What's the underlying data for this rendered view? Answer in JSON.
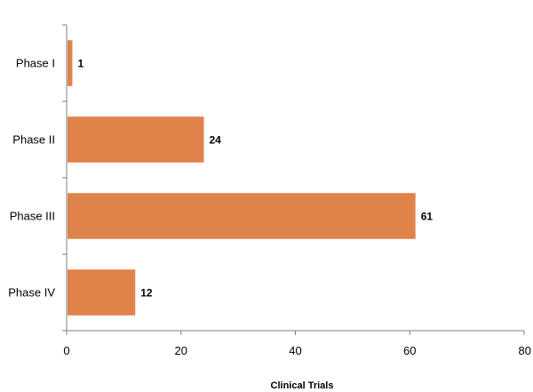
{
  "chart_data": {
    "type": "bar",
    "orientation": "horizontal",
    "categories": [
      "Phase I",
      "Phase II",
      "Phase III",
      "Phase IV"
    ],
    "values": [
      1,
      24,
      61,
      12
    ],
    "data_labels": [
      "1",
      "24",
      "61",
      "12"
    ],
    "title": "",
    "xlabel": "Clinical Trials",
    "ylabel": "",
    "xlim": [
      0,
      80
    ],
    "xticks": [
      0,
      20,
      40,
      60,
      80
    ],
    "xtick_labels": [
      "0",
      "20",
      "40",
      "60",
      "80"
    ],
    "grid": false,
    "legend": "none",
    "bar_color": "#E0834A"
  }
}
